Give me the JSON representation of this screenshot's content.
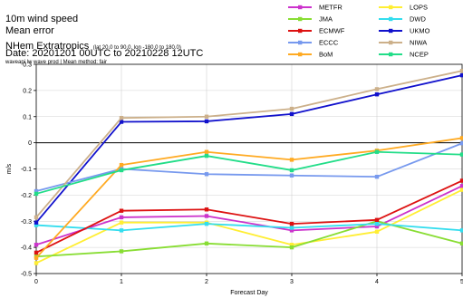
{
  "header": {
    "line1": "10m wind speed",
    "line2": "Mean error",
    "region": "NHem Extratropics",
    "region_detail": "(lat  20.0 to 90.0, lon  -180.0 to  180.0)",
    "date": "Date: 20201201 00UTC to 20210228 12UTC",
    "note": "waveapi lw wave prod | Mean method: fair"
  },
  "chart_data": {
    "type": "line",
    "x": [
      0,
      1,
      2,
      3,
      4,
      5
    ],
    "xlabel": "Forecast Day",
    "ylabel": "m/s",
    "xlim": [
      0,
      5
    ],
    "ylim": [
      -0.5,
      0.3
    ],
    "xticks": [
      "0",
      "1",
      "2",
      "3",
      "4",
      "5"
    ],
    "yticks": [
      "0.3",
      "0.2",
      "0.1",
      "0",
      "-0.1",
      "-0.2",
      "-0.3",
      "-0.4",
      "-0.5"
    ],
    "grid": true,
    "legend_position": "top-right",
    "series": [
      {
        "name": "METFR",
        "color": "#cc33cc",
        "values": [
          -0.39,
          -0.285,
          -0.28,
          -0.335,
          -0.32,
          -0.165
        ]
      },
      {
        "name": "LOPS",
        "color": "#ffee33",
        "values": [
          -0.46,
          -0.305,
          -0.305,
          -0.39,
          -0.34,
          -0.18
        ]
      },
      {
        "name": "JMA",
        "color": "#88dd33",
        "values": [
          -0.435,
          -0.415,
          -0.385,
          -0.4,
          -0.3,
          -0.385
        ]
      },
      {
        "name": "DWD",
        "color": "#33ddee",
        "values": [
          -0.315,
          -0.335,
          -0.31,
          -0.325,
          -0.31,
          -0.335
        ]
      },
      {
        "name": "ECMWF",
        "color": "#dd1111",
        "values": [
          -0.42,
          -0.26,
          -0.255,
          -0.31,
          -0.295,
          -0.145
        ]
      },
      {
        "name": "UKMO",
        "color": "#1111cc",
        "values": [
          -0.305,
          0.08,
          0.082,
          0.11,
          0.185,
          0.258
        ]
      },
      {
        "name": "ECCC",
        "color": "#7799ee",
        "values": [
          -0.185,
          -0.1,
          -0.12,
          -0.125,
          -0.13,
          -0.002
        ]
      },
      {
        "name": "NIWA",
        "color": "#ccb08a",
        "values": [
          -0.285,
          0.095,
          0.1,
          0.13,
          0.205,
          0.275
        ]
      },
      {
        "name": "BoM",
        "color": "#ffaa22",
        "values": [
          -0.44,
          -0.085,
          -0.035,
          -0.065,
          -0.03,
          0.018
        ]
      },
      {
        "name": "NCEP",
        "color": "#22dd88",
        "values": [
          -0.195,
          -0.105,
          -0.05,
          -0.105,
          -0.035,
          -0.045
        ]
      }
    ]
  }
}
